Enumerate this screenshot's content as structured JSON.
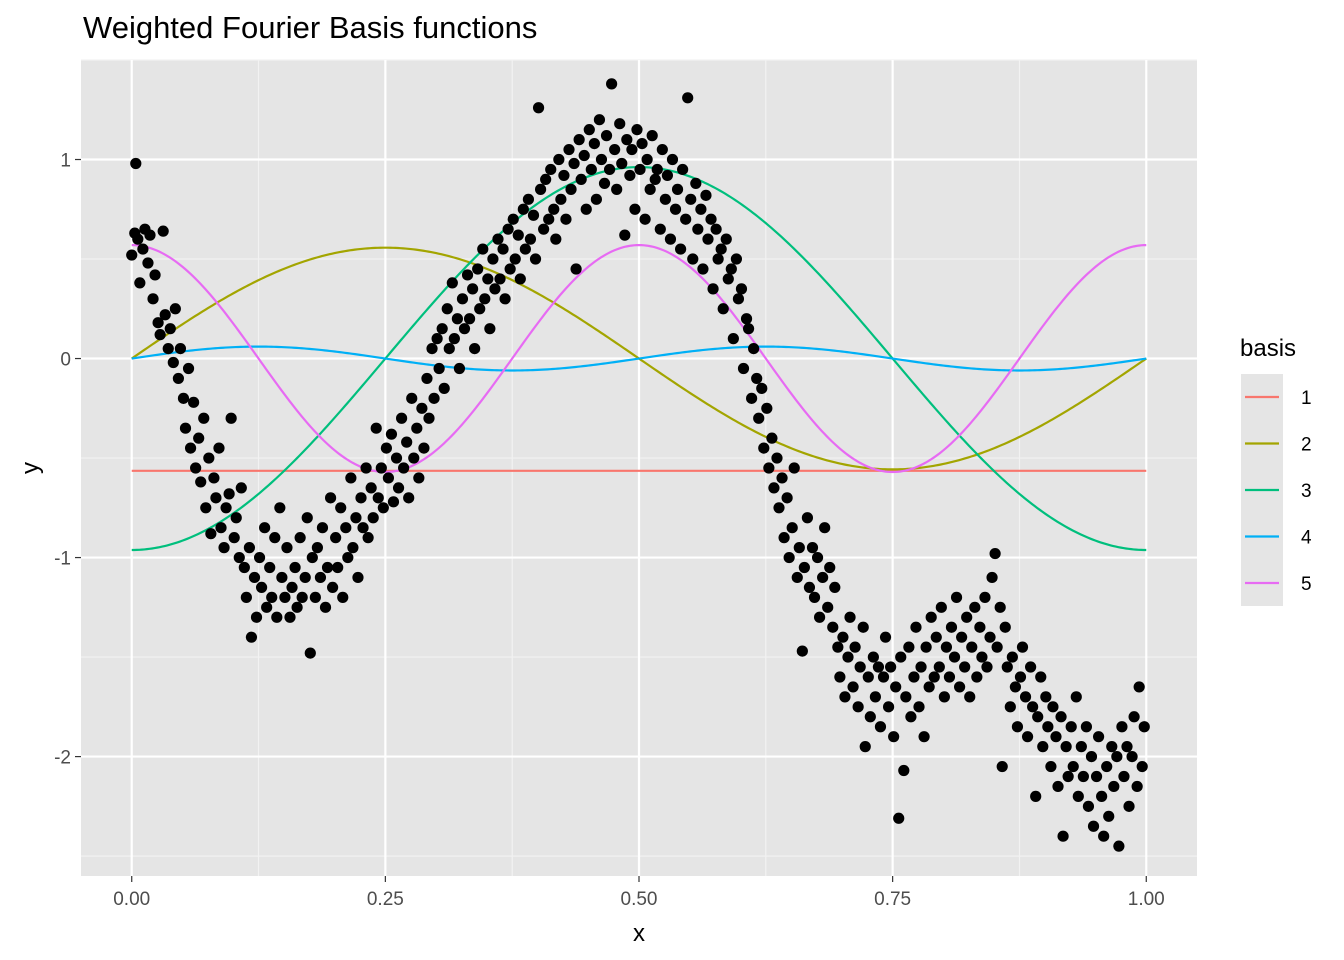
{
  "chart_data": {
    "type": "scatter",
    "title": "Weighted Fourier Basis functions",
    "xlabel": "x",
    "ylabel": "y",
    "xlim": [
      -0.05,
      1.05
    ],
    "ylim": [
      -2.6,
      1.5
    ],
    "x_ticks": [
      0,
      0.25,
      0.5,
      0.75,
      1.0
    ],
    "x_tick_labels": [
      "0.00",
      "0.25",
      "0.50",
      "0.75",
      "1.00"
    ],
    "y_ticks": [
      -2,
      -1,
      0,
      1
    ],
    "y_tick_labels": [
      "-2",
      "-1",
      "0",
      "1"
    ],
    "grid": true,
    "background": "#e5e5e5",
    "points_color": "#000000",
    "points": [
      [
        0.004,
        0.98
      ],
      [
        0.0,
        0.52
      ],
      [
        0.003,
        0.63
      ],
      [
        0.006,
        0.6
      ],
      [
        0.008,
        0.38
      ],
      [
        0.011,
        0.55
      ],
      [
        0.013,
        0.65
      ],
      [
        0.016,
        0.48
      ],
      [
        0.018,
        0.62
      ],
      [
        0.021,
        0.3
      ],
      [
        0.023,
        0.42
      ],
      [
        0.026,
        0.18
      ],
      [
        0.028,
        0.12
      ],
      [
        0.031,
        0.64
      ],
      [
        0.033,
        0.22
      ],
      [
        0.036,
        0.05
      ],
      [
        0.038,
        0.15
      ],
      [
        0.041,
        -0.02
      ],
      [
        0.043,
        0.25
      ],
      [
        0.046,
        -0.1
      ],
      [
        0.048,
        0.05
      ],
      [
        0.051,
        -0.2
      ],
      [
        0.053,
        -0.35
      ],
      [
        0.056,
        -0.05
      ],
      [
        0.058,
        -0.45
      ],
      [
        0.061,
        -0.22
      ],
      [
        0.063,
        -0.55
      ],
      [
        0.066,
        -0.4
      ],
      [
        0.068,
        -0.62
      ],
      [
        0.071,
        -0.3
      ],
      [
        0.073,
        -0.75
      ],
      [
        0.076,
        -0.5
      ],
      [
        0.078,
        -0.88
      ],
      [
        0.081,
        -0.6
      ],
      [
        0.083,
        -0.7
      ],
      [
        0.086,
        -0.45
      ],
      [
        0.088,
        -0.85
      ],
      [
        0.091,
        -0.95
      ],
      [
        0.093,
        -0.75
      ],
      [
        0.096,
        -0.68
      ],
      [
        0.098,
        -0.3
      ],
      [
        0.101,
        -0.9
      ],
      [
        0.103,
        -0.8
      ],
      [
        0.106,
        -1.0
      ],
      [
        0.108,
        -0.65
      ],
      [
        0.111,
        -1.05
      ],
      [
        0.113,
        -1.2
      ],
      [
        0.116,
        -0.95
      ],
      [
        0.118,
        -1.4
      ],
      [
        0.121,
        -1.1
      ],
      [
        0.123,
        -1.3
      ],
      [
        0.126,
        -1.0
      ],
      [
        0.128,
        -1.15
      ],
      [
        0.131,
        -0.85
      ],
      [
        0.133,
        -1.25
      ],
      [
        0.136,
        -1.05
      ],
      [
        0.138,
        -1.2
      ],
      [
        0.141,
        -0.9
      ],
      [
        0.143,
        -1.3
      ],
      [
        0.146,
        -0.75
      ],
      [
        0.148,
        -1.1
      ],
      [
        0.151,
        -1.2
      ],
      [
        0.153,
        -0.95
      ],
      [
        0.156,
        -1.3
      ],
      [
        0.158,
        -1.15
      ],
      [
        0.161,
        -1.05
      ],
      [
        0.163,
        -1.25
      ],
      [
        0.166,
        -0.9
      ],
      [
        0.168,
        -1.2
      ],
      [
        0.171,
        -1.1
      ],
      [
        0.173,
        -0.8
      ],
      [
        0.176,
        -1.48
      ],
      [
        0.178,
        -1.0
      ],
      [
        0.181,
        -1.2
      ],
      [
        0.183,
        -0.95
      ],
      [
        0.186,
        -1.1
      ],
      [
        0.188,
        -0.85
      ],
      [
        0.191,
        -1.25
      ],
      [
        0.193,
        -1.05
      ],
      [
        0.196,
        -0.7
      ],
      [
        0.198,
        -1.15
      ],
      [
        0.201,
        -0.9
      ],
      [
        0.203,
        -1.05
      ],
      [
        0.206,
        -0.75
      ],
      [
        0.208,
        -1.2
      ],
      [
        0.211,
        -0.85
      ],
      [
        0.213,
        -1.0
      ],
      [
        0.216,
        -0.6
      ],
      [
        0.218,
        -0.95
      ],
      [
        0.221,
        -0.8
      ],
      [
        0.223,
        -1.1
      ],
      [
        0.226,
        -0.7
      ],
      [
        0.228,
        -0.85
      ],
      [
        0.231,
        -0.55
      ],
      [
        0.233,
        -0.9
      ],
      [
        0.236,
        -0.65
      ],
      [
        0.238,
        -0.8
      ],
      [
        0.241,
        -0.35
      ],
      [
        0.243,
        -0.7
      ],
      [
        0.246,
        -0.55
      ],
      [
        0.248,
        -0.75
      ],
      [
        0.251,
        -0.45
      ],
      [
        0.253,
        -0.6
      ],
      [
        0.256,
        -0.38
      ],
      [
        0.258,
        -0.72
      ],
      [
        0.261,
        -0.5
      ],
      [
        0.263,
        -0.65
      ],
      [
        0.266,
        -0.3
      ],
      [
        0.268,
        -0.55
      ],
      [
        0.271,
        -0.42
      ],
      [
        0.273,
        -0.7
      ],
      [
        0.276,
        -0.2
      ],
      [
        0.278,
        -0.5
      ],
      [
        0.281,
        -0.35
      ],
      [
        0.283,
        -0.6
      ],
      [
        0.286,
        -0.25
      ],
      [
        0.288,
        -0.45
      ],
      [
        0.291,
        -0.1
      ],
      [
        0.293,
        -0.3
      ],
      [
        0.296,
        0.05
      ],
      [
        0.298,
        -0.2
      ],
      [
        0.301,
        0.1
      ],
      [
        0.303,
        -0.05
      ],
      [
        0.306,
        0.15
      ],
      [
        0.308,
        -0.15
      ],
      [
        0.311,
        0.25
      ],
      [
        0.313,
        0.05
      ],
      [
        0.316,
        0.38
      ],
      [
        0.318,
        0.1
      ],
      [
        0.321,
        0.2
      ],
      [
        0.323,
        -0.05
      ],
      [
        0.326,
        0.3
      ],
      [
        0.328,
        0.15
      ],
      [
        0.331,
        0.42
      ],
      [
        0.333,
        0.2
      ],
      [
        0.336,
        0.35
      ],
      [
        0.338,
        0.05
      ],
      [
        0.341,
        0.45
      ],
      [
        0.343,
        0.25
      ],
      [
        0.346,
        0.55
      ],
      [
        0.348,
        0.3
      ],
      [
        0.351,
        0.4
      ],
      [
        0.353,
        0.15
      ],
      [
        0.356,
        0.5
      ],
      [
        0.358,
        0.35
      ],
      [
        0.361,
        0.6
      ],
      [
        0.363,
        0.4
      ],
      [
        0.366,
        0.55
      ],
      [
        0.368,
        0.3
      ],
      [
        0.371,
        0.65
      ],
      [
        0.373,
        0.45
      ],
      [
        0.376,
        0.7
      ],
      [
        0.378,
        0.5
      ],
      [
        0.381,
        0.62
      ],
      [
        0.383,
        0.4
      ],
      [
        0.386,
        0.75
      ],
      [
        0.388,
        0.55
      ],
      [
        0.391,
        0.8
      ],
      [
        0.393,
        0.6
      ],
      [
        0.396,
        0.72
      ],
      [
        0.398,
        0.5
      ],
      [
        0.401,
        1.26
      ],
      [
        0.403,
        0.85
      ],
      [
        0.406,
        0.65
      ],
      [
        0.408,
        0.9
      ],
      [
        0.411,
        0.7
      ],
      [
        0.413,
        0.95
      ],
      [
        0.416,
        0.75
      ],
      [
        0.418,
        0.6
      ],
      [
        0.421,
        1.0
      ],
      [
        0.423,
        0.8
      ],
      [
        0.426,
        0.92
      ],
      [
        0.428,
        0.7
      ],
      [
        0.431,
        1.05
      ],
      [
        0.433,
        0.85
      ],
      [
        0.436,
        0.98
      ],
      [
        0.438,
        0.45
      ],
      [
        0.441,
        1.1
      ],
      [
        0.443,
        0.9
      ],
      [
        0.446,
        1.02
      ],
      [
        0.448,
        0.75
      ],
      [
        0.451,
        1.15
      ],
      [
        0.453,
        0.95
      ],
      [
        0.456,
        1.08
      ],
      [
        0.458,
        0.8
      ],
      [
        0.461,
        1.2
      ],
      [
        0.463,
        1.0
      ],
      [
        0.466,
        0.88
      ],
      [
        0.468,
        1.12
      ],
      [
        0.471,
        0.95
      ],
      [
        0.473,
        1.38
      ],
      [
        0.476,
        1.05
      ],
      [
        0.478,
        0.85
      ],
      [
        0.481,
        1.18
      ],
      [
        0.483,
        0.98
      ],
      [
        0.486,
        0.62
      ],
      [
        0.488,
        1.1
      ],
      [
        0.491,
        0.92
      ],
      [
        0.493,
        1.05
      ],
      [
        0.496,
        0.75
      ],
      [
        0.498,
        1.15
      ],
      [
        0.501,
        0.95
      ],
      [
        0.503,
        1.08
      ],
      [
        0.506,
        0.7
      ],
      [
        0.508,
        1.0
      ],
      [
        0.511,
        0.85
      ],
      [
        0.513,
        1.12
      ],
      [
        0.516,
        0.9
      ],
      [
        0.518,
        0.95
      ],
      [
        0.521,
        0.65
      ],
      [
        0.523,
        1.05
      ],
      [
        0.526,
        0.8
      ],
      [
        0.528,
        0.92
      ],
      [
        0.531,
        0.6
      ],
      [
        0.533,
        1.0
      ],
      [
        0.536,
        0.75
      ],
      [
        0.538,
        0.85
      ],
      [
        0.541,
        0.55
      ],
      [
        0.543,
        0.95
      ],
      [
        0.546,
        0.7
      ],
      [
        0.548,
        1.31
      ],
      [
        0.551,
        0.8
      ],
      [
        0.553,
        0.5
      ],
      [
        0.556,
        0.88
      ],
      [
        0.558,
        0.65
      ],
      [
        0.561,
        0.75
      ],
      [
        0.563,
        0.45
      ],
      [
        0.566,
        0.82
      ],
      [
        0.568,
        0.6
      ],
      [
        0.571,
        0.7
      ],
      [
        0.573,
        0.35
      ],
      [
        0.576,
        0.65
      ],
      [
        0.578,
        0.5
      ],
      [
        0.581,
        0.55
      ],
      [
        0.583,
        0.25
      ],
      [
        0.586,
        0.6
      ],
      [
        0.588,
        0.4
      ],
      [
        0.591,
        0.45
      ],
      [
        0.593,
        0.1
      ],
      [
        0.596,
        0.5
      ],
      [
        0.598,
        0.3
      ],
      [
        0.601,
        0.35
      ],
      [
        0.603,
        -0.05
      ],
      [
        0.606,
        0.2
      ],
      [
        0.608,
        0.15
      ],
      [
        0.611,
        -0.2
      ],
      [
        0.613,
        0.05
      ],
      [
        0.616,
        -0.1
      ],
      [
        0.618,
        -0.3
      ],
      [
        0.621,
        -0.15
      ],
      [
        0.623,
        -0.45
      ],
      [
        0.626,
        -0.25
      ],
      [
        0.628,
        -0.55
      ],
      [
        0.631,
        -0.4
      ],
      [
        0.633,
        -0.65
      ],
      [
        0.636,
        -0.5
      ],
      [
        0.638,
        -0.75
      ],
      [
        0.641,
        -0.6
      ],
      [
        0.643,
        -0.9
      ],
      [
        0.646,
        -0.7
      ],
      [
        0.648,
        -1.0
      ],
      [
        0.651,
        -0.85
      ],
      [
        0.653,
        -0.55
      ],
      [
        0.656,
        -1.1
      ],
      [
        0.658,
        -0.95
      ],
      [
        0.661,
        -1.47
      ],
      [
        0.663,
        -1.05
      ],
      [
        0.666,
        -0.8
      ],
      [
        0.668,
        -1.15
      ],
      [
        0.671,
        -0.95
      ],
      [
        0.673,
        -1.2
      ],
      [
        0.676,
        -1.0
      ],
      [
        0.678,
        -1.3
      ],
      [
        0.681,
        -1.1
      ],
      [
        0.683,
        -0.85
      ],
      [
        0.686,
        -1.25
      ],
      [
        0.688,
        -1.05
      ],
      [
        0.691,
        -1.35
      ],
      [
        0.693,
        -1.15
      ],
      [
        0.696,
        -1.45
      ],
      [
        0.698,
        -1.6
      ],
      [
        0.701,
        -1.4
      ],
      [
        0.703,
        -1.7
      ],
      [
        0.706,
        -1.5
      ],
      [
        0.708,
        -1.3
      ],
      [
        0.711,
        -1.65
      ],
      [
        0.713,
        -1.45
      ],
      [
        0.716,
        -1.75
      ],
      [
        0.718,
        -1.55
      ],
      [
        0.721,
        -1.35
      ],
      [
        0.723,
        -1.95
      ],
      [
        0.726,
        -1.6
      ],
      [
        0.728,
        -1.8
      ],
      [
        0.731,
        -1.5
      ],
      [
        0.733,
        -1.7
      ],
      [
        0.736,
        -1.55
      ],
      [
        0.738,
        -1.85
      ],
      [
        0.741,
        -1.6
      ],
      [
        0.743,
        -1.4
      ],
      [
        0.746,
        -1.75
      ],
      [
        0.748,
        -1.55
      ],
      [
        0.751,
        -1.9
      ],
      [
        0.753,
        -1.65
      ],
      [
        0.756,
        -2.31
      ],
      [
        0.758,
        -1.5
      ],
      [
        0.761,
        -2.07
      ],
      [
        0.763,
        -1.7
      ],
      [
        0.766,
        -1.45
      ],
      [
        0.768,
        -1.8
      ],
      [
        0.771,
        -1.6
      ],
      [
        0.773,
        -1.35
      ],
      [
        0.776,
        -1.75
      ],
      [
        0.778,
        -1.55
      ],
      [
        0.781,
        -1.9
      ],
      [
        0.783,
        -1.45
      ],
      [
        0.786,
        -1.65
      ],
      [
        0.788,
        -1.3
      ],
      [
        0.791,
        -1.6
      ],
      [
        0.793,
        -1.4
      ],
      [
        0.796,
        -1.55
      ],
      [
        0.798,
        -1.25
      ],
      [
        0.801,
        -1.7
      ],
      [
        0.803,
        -1.45
      ],
      [
        0.806,
        -1.6
      ],
      [
        0.808,
        -1.35
      ],
      [
        0.811,
        -1.5
      ],
      [
        0.813,
        -1.2
      ],
      [
        0.816,
        -1.65
      ],
      [
        0.818,
        -1.4
      ],
      [
        0.821,
        -1.55
      ],
      [
        0.823,
        -1.3
      ],
      [
        0.826,
        -1.7
      ],
      [
        0.828,
        -1.45
      ],
      [
        0.831,
        -1.25
      ],
      [
        0.833,
        -1.6
      ],
      [
        0.836,
        -1.35
      ],
      [
        0.838,
        -1.5
      ],
      [
        0.841,
        -1.2
      ],
      [
        0.843,
        -1.55
      ],
      [
        0.846,
        -1.4
      ],
      [
        0.848,
        -1.1
      ],
      [
        0.851,
        -0.98
      ],
      [
        0.853,
        -1.45
      ],
      [
        0.856,
        -1.25
      ],
      [
        0.858,
        -2.05
      ],
      [
        0.861,
        -1.35
      ],
      [
        0.863,
        -1.55
      ],
      [
        0.866,
        -1.75
      ],
      [
        0.868,
        -1.5
      ],
      [
        0.871,
        -1.65
      ],
      [
        0.873,
        -1.85
      ],
      [
        0.876,
        -1.6
      ],
      [
        0.878,
        -1.45
      ],
      [
        0.881,
        -1.7
      ],
      [
        0.883,
        -1.9
      ],
      [
        0.886,
        -1.55
      ],
      [
        0.888,
        -1.75
      ],
      [
        0.891,
        -2.2
      ],
      [
        0.893,
        -1.8
      ],
      [
        0.896,
        -1.6
      ],
      [
        0.898,
        -1.95
      ],
      [
        0.901,
        -1.7
      ],
      [
        0.903,
        -1.85
      ],
      [
        0.906,
        -2.05
      ],
      [
        0.908,
        -1.75
      ],
      [
        0.911,
        -1.9
      ],
      [
        0.913,
        -2.15
      ],
      [
        0.916,
        -1.8
      ],
      [
        0.918,
        -2.4
      ],
      [
        0.921,
        -1.95
      ],
      [
        0.923,
        -2.1
      ],
      [
        0.926,
        -1.85
      ],
      [
        0.928,
        -2.05
      ],
      [
        0.931,
        -1.7
      ],
      [
        0.933,
        -2.2
      ],
      [
        0.936,
        -1.95
      ],
      [
        0.938,
        -2.1
      ],
      [
        0.941,
        -1.85
      ],
      [
        0.943,
        -2.25
      ],
      [
        0.946,
        -2.0
      ],
      [
        0.948,
        -2.35
      ],
      [
        0.951,
        -2.1
      ],
      [
        0.953,
        -1.9
      ],
      [
        0.956,
        -2.2
      ],
      [
        0.958,
        -2.4
      ],
      [
        0.961,
        -2.05
      ],
      [
        0.963,
        -2.3
      ],
      [
        0.966,
        -1.95
      ],
      [
        0.968,
        -2.15
      ],
      [
        0.971,
        -2.0
      ],
      [
        0.973,
        -2.45
      ],
      [
        0.976,
        -1.85
      ],
      [
        0.978,
        -2.1
      ],
      [
        0.981,
        -1.95
      ],
      [
        0.983,
        -2.25
      ],
      [
        0.986,
        -2.0
      ],
      [
        0.988,
        -1.8
      ],
      [
        0.991,
        -2.15
      ],
      [
        0.993,
        -1.65
      ],
      [
        0.996,
        -2.05
      ],
      [
        0.998,
        -1.85
      ]
    ],
    "series": [
      {
        "name": "1",
        "color": "#f8766d",
        "basis": "constant",
        "amplitude": -0.5642
      },
      {
        "name": "2",
        "color": "#a3a500",
        "basis": "sin1",
        "amplitude": 0.557
      },
      {
        "name": "3",
        "color": "#00bf7d",
        "basis": "cos1",
        "amplitude": -0.962
      },
      {
        "name": "4",
        "color": "#00b0f6",
        "basis": "sin2",
        "amplitude": 0.06
      },
      {
        "name": "5",
        "color": "#e76bf3",
        "basis": "cos2",
        "amplitude": 0.57
      }
    ],
    "legend": {
      "title": "basis",
      "position": "right"
    }
  }
}
